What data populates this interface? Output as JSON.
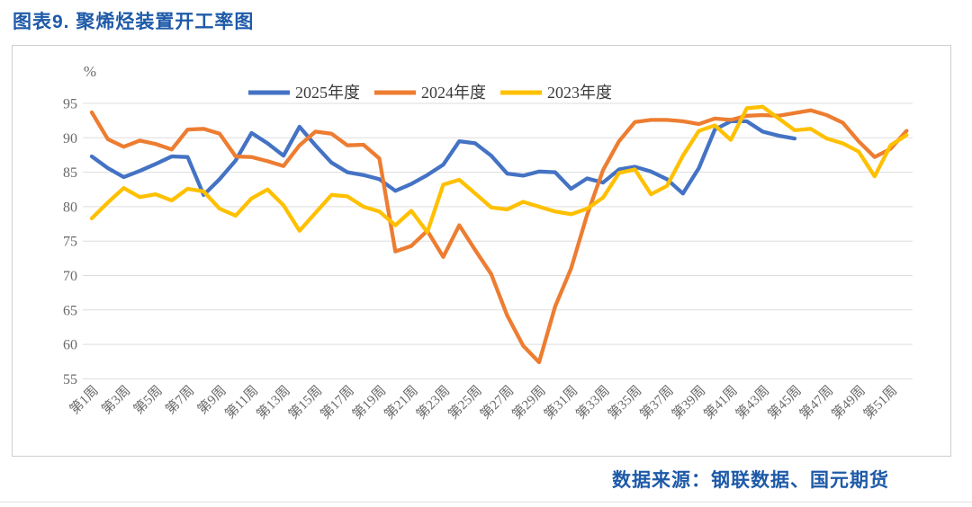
{
  "page": {
    "title": "图表9.  聚烯烃装置开工率图",
    "source": "数据来源：钢联数据、国元期货"
  },
  "chart_data": {
    "type": "line",
    "title": "",
    "unit_label": "%",
    "ylabel": "",
    "xlabel": "",
    "ylim": [
      55,
      95
    ],
    "y_ticks": [
      95,
      90,
      85,
      80,
      75,
      70,
      65,
      60,
      55
    ],
    "grid": true,
    "legend_position": "top",
    "x_weeks": 52,
    "x_tick_labels": [
      "第1周",
      "第3周",
      "第5周",
      "第7周",
      "第9周",
      "第11周",
      "第13周",
      "第15周",
      "第17周",
      "第19周",
      "第21周",
      "第23周",
      "第25周",
      "第27周",
      "第29周",
      "第31周",
      "第33周",
      "第35周",
      "第37周",
      "第39周",
      "第41周",
      "第43周",
      "第45周",
      "第47周",
      "第49周",
      "第51周"
    ],
    "series": [
      {
        "name": "2025年度",
        "color": "#4472C4",
        "start_week": 1,
        "values": [
          87.3,
          85.6,
          84.3,
          85.2,
          86.2,
          87.3,
          87.2,
          81.7,
          84.0,
          86.7,
          90.7,
          89.2,
          87.4,
          91.6,
          88.9,
          86.4,
          85.0,
          84.6,
          84.0,
          82.3,
          83.3,
          84.6,
          86.1,
          89.5,
          89.2,
          87.4,
          84.8,
          84.5,
          85.1,
          85.0,
          82.6,
          84.1,
          83.5,
          85.4,
          85.8,
          85.1,
          84.0,
          81.9,
          85.6,
          91.2,
          92.4,
          92.4,
          90.9,
          90.3,
          89.9
        ]
      },
      {
        "name": "2024年度",
        "color": "#ED7D31",
        "start_week": 1,
        "values": [
          93.7,
          89.8,
          88.7,
          89.6,
          89.1,
          88.3,
          91.2,
          91.3,
          90.6,
          87.3,
          87.2,
          86.6,
          85.9,
          88.9,
          90.9,
          90.6,
          88.9,
          89.0,
          87.0,
          73.5,
          74.3,
          76.5,
          72.7,
          77.3,
          73.7,
          70.2,
          64.2,
          59.8,
          57.4,
          65.5,
          71.0,
          78.8,
          85.3,
          89.5,
          92.3,
          92.6,
          92.6,
          92.4,
          92.0,
          92.8,
          92.6,
          93.2,
          93.3,
          93.2,
          93.6,
          94.0,
          93.3,
          92.2,
          89.5,
          87.2,
          88.4,
          91.0
        ]
      },
      {
        "name": "2023年度",
        "color": "#FFC000",
        "start_week": 1,
        "values": [
          78.3,
          80.6,
          82.7,
          81.4,
          81.8,
          80.9,
          82.6,
          82.2,
          79.7,
          78.7,
          81.2,
          82.5,
          80.2,
          76.5,
          79.1,
          81.7,
          81.5,
          80.0,
          79.3,
          77.3,
          79.4,
          76.3,
          83.2,
          83.9,
          81.9,
          79.9,
          79.6,
          80.7,
          80.0,
          79.3,
          78.9,
          79.7,
          81.3,
          84.9,
          85.4,
          81.8,
          83.0,
          87.4,
          91.0,
          91.8,
          89.7,
          94.3,
          94.5,
          92.8,
          91.1,
          91.3,
          89.9,
          89.2,
          88.0,
          84.4,
          88.9,
          90.4
        ]
      }
    ],
    "colors": {
      "grid": "#dddddd",
      "axis_text": "#6a6a6a",
      "legend_text": "#3a3a3a",
      "accent_blue": "#1E5AA8"
    }
  }
}
